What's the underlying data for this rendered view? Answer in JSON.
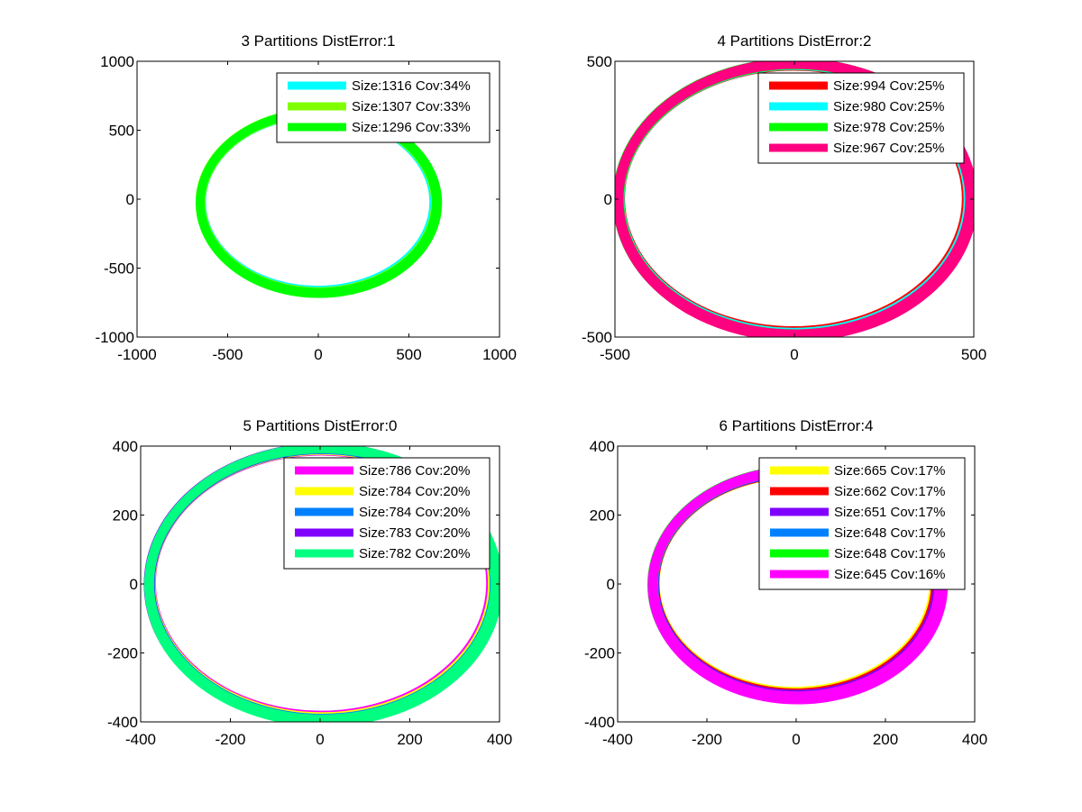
{
  "chart_data": [
    {
      "type": "scatter",
      "title": "3 Partitions DistError:1",
      "xlim": [
        -1000,
        1000
      ],
      "ylim": [
        -1000,
        1000
      ],
      "xticks": [
        -1000,
        -500,
        0,
        500,
        1000
      ],
      "yticks": [
        -1000,
        -500,
        0,
        500,
        1000
      ],
      "xtick_labels": [
        "-1000",
        "-500",
        "0",
        "500",
        "1000"
      ],
      "ytick_labels": [
        "-1000",
        "-500",
        "0",
        "500",
        "1000"
      ],
      "ring": {
        "cx": 0,
        "cy": -25,
        "rx": 650,
        "ry": 650,
        "thickness": 55
      },
      "legend_position": "top-right",
      "series": [
        {
          "name": "Size:1316 Cov:34%",
          "color": "#00ffff"
        },
        {
          "name": "Size:1307 Cov:33%",
          "color": "#80ff00"
        },
        {
          "name": "Size:1296 Cov:33%",
          "color": "#00ff00"
        }
      ],
      "top_series_color": "#00ff00"
    },
    {
      "type": "scatter",
      "title": "4 Partitions DistError:2",
      "xlim": [
        -500,
        500
      ],
      "ylim": [
        -500,
        500
      ],
      "xticks": [
        -500,
        0,
        500
      ],
      "yticks": [
        -500,
        0,
        500
      ],
      "xtick_labels": [
        "-500",
        "0",
        "500"
      ],
      "ytick_labels": [
        "-500",
        "0",
        "500"
      ],
      "ring": {
        "cx": 0,
        "cy": 0,
        "rx": 490,
        "ry": 490,
        "thickness": 32
      },
      "legend_position": "top-right",
      "series": [
        {
          "name": "Size:994 Cov:25%",
          "color": "#ff0000"
        },
        {
          "name": "Size:980 Cov:25%",
          "color": "#00ffff"
        },
        {
          "name": "Size:978 Cov:25%",
          "color": "#00ff00"
        },
        {
          "name": "Size:967 Cov:25%",
          "color": "#ff0080"
        }
      ],
      "top_series_color": "#ff0080"
    },
    {
      "type": "scatter",
      "title": "5 Partitions DistError:0",
      "xlim": [
        -400,
        400
      ],
      "ylim": [
        -400,
        400
      ],
      "xticks": [
        -400,
        -200,
        0,
        200,
        400
      ],
      "yticks": [
        -400,
        -200,
        0,
        200,
        400
      ],
      "xtick_labels": [
        "-400",
        "-200",
        "0",
        "200",
        "400"
      ],
      "ytick_labels": [
        "-400",
        "-200",
        "0",
        "200",
        "400"
      ],
      "ring": {
        "cx": 5,
        "cy": 0,
        "rx": 385,
        "ry": 392,
        "thickness": 24
      },
      "legend_position": "top-right",
      "series": [
        {
          "name": "Size:786 Cov:20%",
          "color": "#ff00ff"
        },
        {
          "name": "Size:784 Cov:20%",
          "color": "#ffff00"
        },
        {
          "name": "Size:784 Cov:20%",
          "color": "#0080ff"
        },
        {
          "name": "Size:783 Cov:20%",
          "color": "#8000ff"
        },
        {
          "name": "Size:782 Cov:20%",
          "color": "#00ff80"
        }
      ],
      "top_series_color": "#00ff80"
    },
    {
      "type": "scatter",
      "title": "6 Partitions DistError:4",
      "xlim": [
        -400,
        400
      ],
      "ylim": [
        -400,
        400
      ],
      "xticks": [
        -400,
        -200,
        0,
        200,
        400
      ],
      "yticks": [
        -400,
        -200,
        0,
        200,
        400
      ],
      "xtick_labels": [
        "-400",
        "-200",
        "0",
        "200",
        "400"
      ],
      "ytick_labels": [
        "-400",
        "-200",
        "0",
        "200",
        "400"
      ],
      "ring": {
        "cx": 0,
        "cy": 0,
        "rx": 320,
        "ry": 325,
        "thickness": 24
      },
      "legend_position": "top-right",
      "series": [
        {
          "name": "Size:665 Cov:17%",
          "color": "#ffff00"
        },
        {
          "name": "Size:662 Cov:17%",
          "color": "#ff0000"
        },
        {
          "name": "Size:651 Cov:17%",
          "color": "#8000ff"
        },
        {
          "name": "Size:648 Cov:17%",
          "color": "#0080ff"
        },
        {
          "name": "Size:648 Cov:17%",
          "color": "#00ff00"
        },
        {
          "name": "Size:645 Cov:16%",
          "color": "#ff00ff"
        }
      ],
      "top_series_color": "#ff00ff"
    }
  ]
}
